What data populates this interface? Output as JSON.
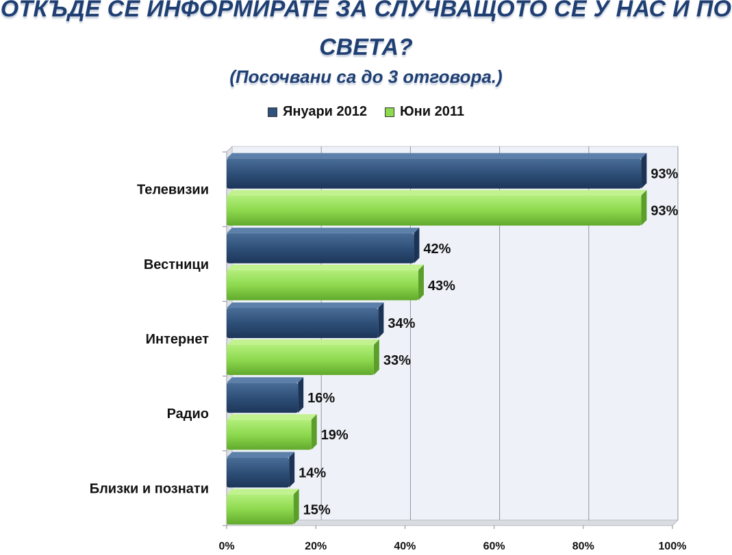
{
  "title_line1": "ОТКЪДЕ СЕ ИНФОРМИРАТЕ ЗА СЛУЧВАЩОТО СЕ У НАС И ПО",
  "title_line2": "СВЕТА?",
  "subtitle": "(Посочвани са до 3 отговора.)",
  "chart_data": {
    "type": "bar",
    "orientation": "horizontal",
    "title": "ОТКЪДЕ СЕ ИНФОРМИРАТЕ ЗА СЛУЧВАЩОТО СЕ У НАС И ПО СВЕТА?",
    "subtitle": "(Посочвани са до 3 отговора.)",
    "categories": [
      "Телевизии",
      "Вестници",
      "Интернет",
      "Радио",
      "Близки и познати"
    ],
    "series": [
      {
        "name": "Януари 2012",
        "color": "#2F527D",
        "values": [
          93,
          42,
          34,
          16,
          14
        ],
        "labels": [
          "93%",
          "42%",
          "34%",
          "16%",
          "14%"
        ]
      },
      {
        "name": "Юни 2011",
        "color": "#8ED94F",
        "values": [
          93,
          43,
          33,
          19,
          15
        ],
        "labels": [
          "93%",
          "43%",
          "33%",
          "19%",
          "15%"
        ]
      }
    ],
    "xlim": [
      0,
      100
    ],
    "xticks": [
      "0%",
      "20%",
      "40%",
      "60%",
      "80%",
      "100%"
    ],
    "grid": true,
    "legend_position": "top"
  }
}
